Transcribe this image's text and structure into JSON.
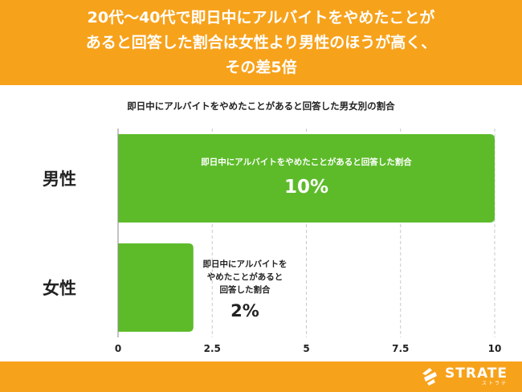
{
  "header": {
    "title_lines": [
      "20代〜40代で即日中にアルバイトをやめたことが",
      "あると回答した割合は女性より男性のほうが高く、",
      "その差5倍"
    ]
  },
  "colors": {
    "accent": "#f7a21b",
    "bar": "#5dbb2a",
    "grid": "#c9c9c9"
  },
  "chart_data": {
    "type": "bar",
    "orientation": "horizontal",
    "title": "即日中にアルバイトをやめたことがあると回答した男女別の割合",
    "categories": [
      "男性",
      "女性"
    ],
    "values": [
      10,
      2
    ],
    "value_labels": [
      "10%",
      "2%"
    ],
    "bar_labels": [
      [
        "即日中にアルバイトをやめたことがあると回答した割合"
      ],
      [
        "即日中にアルバイトを",
        "やめたことがあると",
        "回答した割合"
      ]
    ],
    "xlim": [
      0,
      10
    ],
    "xticks": [
      0,
      2.5,
      5,
      7.5,
      10
    ],
    "xtick_labels": [
      "0",
      "2.5",
      "5",
      "7.5",
      "10"
    ],
    "grid": true
  },
  "footer": {
    "logo_text": "STRATE",
    "logo_sub": "ストラテ"
  }
}
